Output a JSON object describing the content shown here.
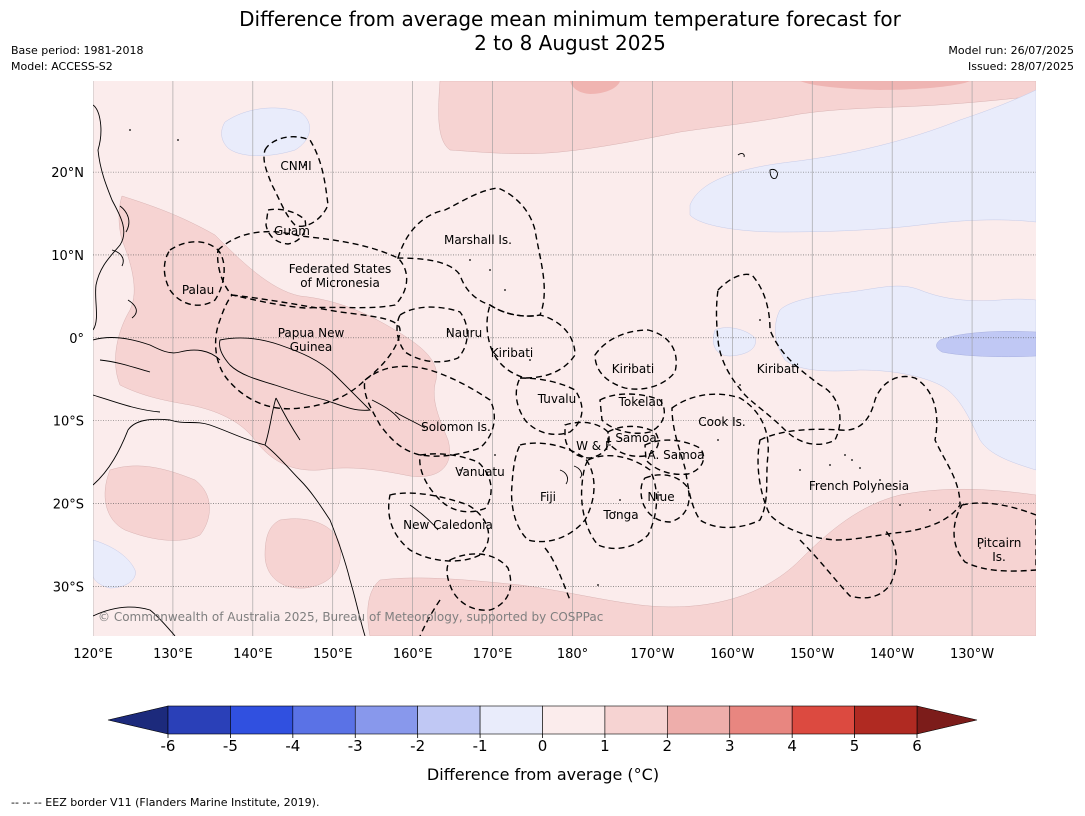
{
  "title": {
    "line1": "Difference from average mean minimum temperature forecast for",
    "line2": "2 to 8 August 2025"
  },
  "meta": {
    "base_period": "Base period: 1981-2018",
    "model": "Model: ACCESS-S2",
    "model_run": "Model run: 26/07/2025",
    "issued": "Issued: 28/07/2025"
  },
  "map": {
    "lon_range": [
      120,
      238
    ],
    "lat_range": [
      -36,
      31
    ],
    "lon_ticks": [
      "120°E",
      "130°E",
      "140°E",
      "150°E",
      "160°E",
      "170°E",
      "180°",
      "170°W",
      "160°W",
      "150°W",
      "140°W",
      "130°W"
    ],
    "lat_ticks": [
      "20°N",
      "10°N",
      "0°",
      "10°S",
      "20°S",
      "30°S"
    ],
    "regions": [
      {
        "name": "CNMI",
        "lines": [
          "CNMI"
        ]
      },
      {
        "name": "Guam",
        "lines": [
          "Guam"
        ]
      },
      {
        "name": "Marshall Is.",
        "lines": [
          "Marshall Is."
        ]
      },
      {
        "name": "Federated States of Micronesia",
        "lines": [
          "Federated States",
          "of Micronesia"
        ]
      },
      {
        "name": "Palau",
        "lines": [
          "Palau"
        ]
      },
      {
        "name": "Nauru",
        "lines": [
          "Nauru"
        ]
      },
      {
        "name": "Papua New Guinea",
        "lines": [
          "Papua New",
          "Guinea"
        ]
      },
      {
        "name": "Kiribati (Gilbert)",
        "lines": [
          "Kiribati"
        ]
      },
      {
        "name": "Kiribati (Phoenix)",
        "lines": [
          "Kiribati"
        ]
      },
      {
        "name": "Kiribati (Line)",
        "lines": [
          "Kiribati"
        ]
      },
      {
        "name": "Tuvalu",
        "lines": [
          "Tuvalu"
        ]
      },
      {
        "name": "Tokelau",
        "lines": [
          "Tokelau"
        ]
      },
      {
        "name": "Solomon Is.",
        "lines": [
          "Solomon Is."
        ]
      },
      {
        "name": "Cook Is.",
        "lines": [
          "Cook Is."
        ]
      },
      {
        "name": "Samoa",
        "lines": [
          "Samoa"
        ]
      },
      {
        "name": "W & F",
        "lines": [
          "W & F"
        ]
      },
      {
        "name": "A. Samoa",
        "lines": [
          "A. Samoa"
        ]
      },
      {
        "name": "Vanuatu",
        "lines": [
          "Vanuatu"
        ]
      },
      {
        "name": "Fiji",
        "lines": [
          "Fiji"
        ]
      },
      {
        "name": "Niue",
        "lines": [
          "Niue"
        ]
      },
      {
        "name": "French Polynesia",
        "lines": [
          "French Polynesia"
        ]
      },
      {
        "name": "Tonga",
        "lines": [
          "Tonga"
        ]
      },
      {
        "name": "New Caledonia",
        "lines": [
          "New Caledonia"
        ]
      },
      {
        "name": "Pitcairn Is.",
        "lines": [
          "Pitcairn",
          "Is."
        ]
      }
    ],
    "copyright": "© Commonwealth of Australia 2025, Bureau of Meteorology, supported by COSPPac"
  },
  "colorbar": {
    "title": "Difference from average (°C)",
    "ticks": [
      "-6",
      "-5",
      "-4",
      "-3",
      "-2",
      "-1",
      "0",
      "1",
      "2",
      "3",
      "4",
      "5",
      "6"
    ],
    "under_color": "#1c2a7c",
    "over_color": "#7c1c1a",
    "colors": [
      "#2a40b8",
      "#3050e0",
      "#5a72e6",
      "#8898ec",
      "#c0c8f4",
      "#e9ecfb",
      "#fbecec",
      "#f6d3d2",
      "#eeaeab",
      "#e88680",
      "#dc4a40",
      "#b02a22"
    ]
  },
  "footnote": "--  --  -- EEZ border V11 (Flanders Marine Institute, 2019)."
}
